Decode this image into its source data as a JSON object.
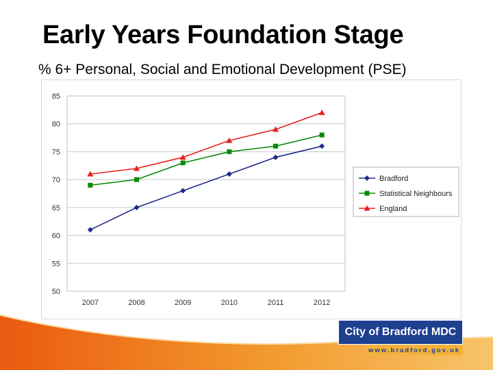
{
  "slide": {
    "title": "Early Years Foundation Stage",
    "subtitle": "% 6+ Personal, Social and Emotional Development (PSE)"
  },
  "chart_data": {
    "type": "line",
    "title": "",
    "xlabel": "",
    "ylabel": "",
    "categories": [
      "2007",
      "2008",
      "2009",
      "2010",
      "2011",
      "2012"
    ],
    "ylim": [
      50,
      85
    ],
    "yticks": [
      50,
      55,
      60,
      65,
      70,
      75,
      80,
      85
    ],
    "grid": true,
    "legend_position": "right",
    "series": [
      {
        "name": "Bradford",
        "values": [
          61,
          65,
          68,
          71,
          74,
          76
        ],
        "color": "#1f2a8c",
        "marker": "diamond"
      },
      {
        "name": "Statistical Neighbours",
        "values": [
          69,
          70,
          73,
          75,
          76,
          78
        ],
        "color": "#0a8a0a",
        "marker": "square"
      },
      {
        "name": "England",
        "values": [
          71,
          72,
          74,
          77,
          79,
          82
        ],
        "color": "#e8201b",
        "marker": "triangle"
      }
    ]
  },
  "logo": {
    "name": "City of Bradford MDC",
    "url": "www.bradford.gov.uk"
  },
  "colors": {
    "brand_blue": "#1f3f8f",
    "brand_gold": "#f3b23b",
    "swoosh_orange": "#f07d1c"
  }
}
